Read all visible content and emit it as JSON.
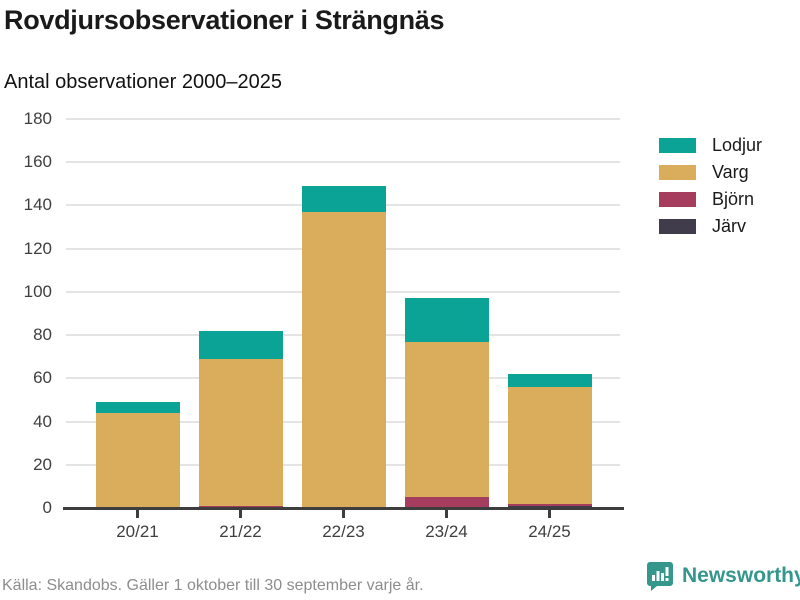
{
  "header": {
    "title": "Rovdjursobservationer i Strängnäs",
    "subtitle": "Antal observationer 2000–2025"
  },
  "chart_data": {
    "type": "bar",
    "stacked": true,
    "categories": [
      "20/21",
      "21/22",
      "22/23",
      "23/24",
      "24/25"
    ],
    "series": [
      {
        "name": "Lodjur",
        "color": "#0aa396",
        "values": [
          5,
          13,
          12,
          20,
          6
        ]
      },
      {
        "name": "Varg",
        "color": "#d9ad5c",
        "values": [
          44,
          68,
          137,
          72,
          54
        ]
      },
      {
        "name": "Björn",
        "color": "#a63d5e",
        "values": [
          0,
          1,
          0,
          5,
          1
        ]
      },
      {
        "name": "Järv",
        "color": "#413c4c",
        "values": [
          0,
          0,
          0,
          0,
          1
        ]
      }
    ],
    "totals": [
      49,
      82,
      149,
      97,
      62
    ],
    "title": "Rovdjursobservationer i Strängnäs",
    "subtitle": "Antal observationer 2000–2025",
    "xlabel": "",
    "ylabel": "",
    "ylim": [
      0,
      180
    ],
    "ytick_step": 20,
    "grid": true,
    "legend_position": "right"
  },
  "footer": {
    "source": "Källa: Skandobs. Gäller 1 oktober till 30 september varje år.",
    "brand": "Newsworthy"
  },
  "colors": {
    "axis": "#3d3d3d",
    "grid": "#e4e4e4",
    "brand_teal": "#35968c"
  }
}
